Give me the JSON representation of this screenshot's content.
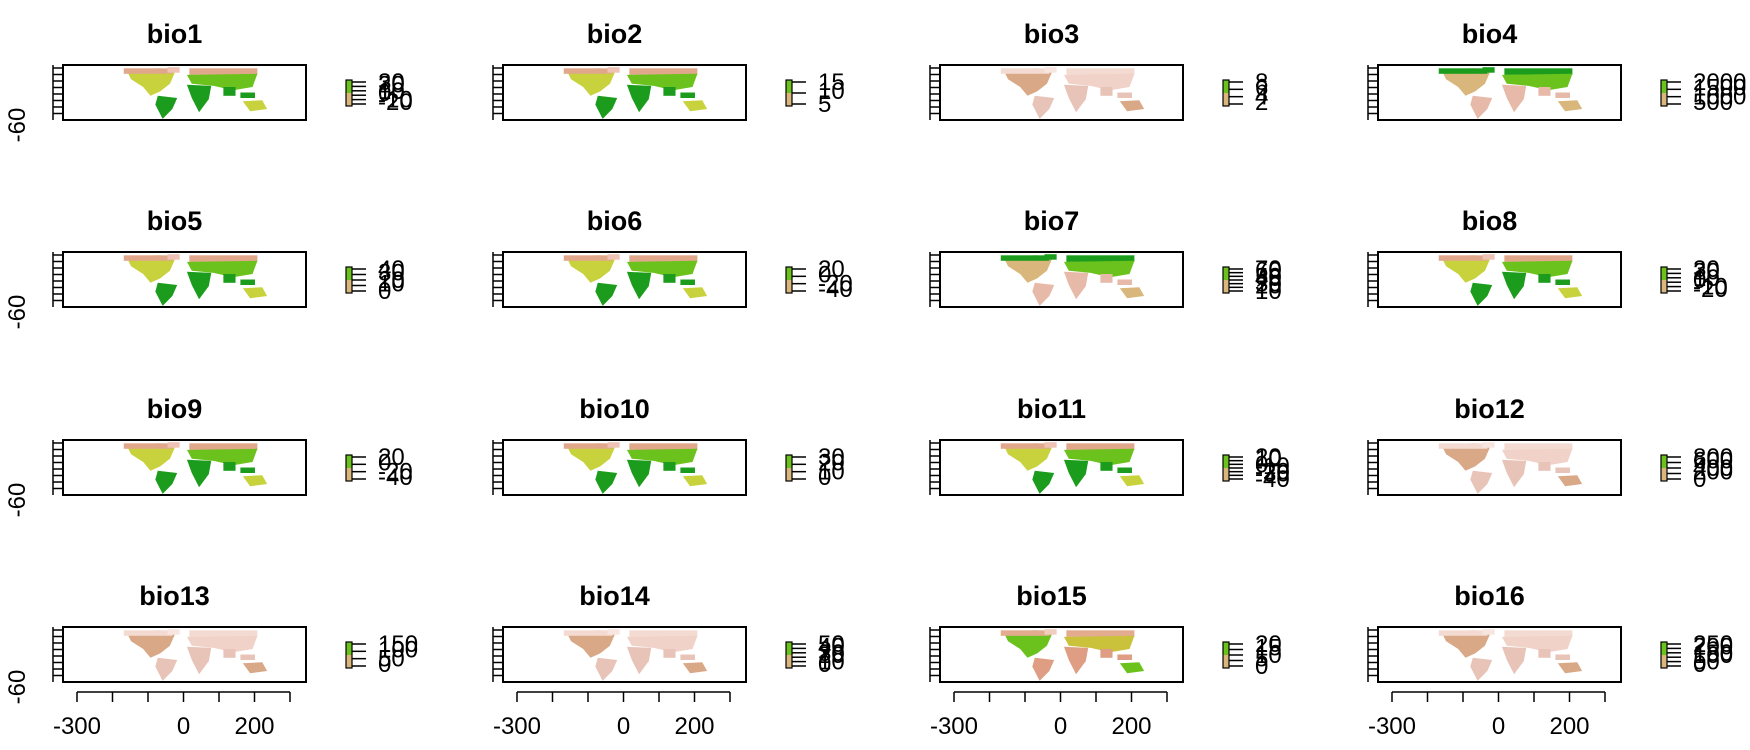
{
  "chart_data": {
    "type": "heatmap",
    "description_kind": "raster-map-grid",
    "x_ticks": [
      -300,
      0,
      200
    ],
    "y_tick": -60,
    "panels": [
      {
        "title": "bio1",
        "legend": [
          "30",
          "20",
          "10",
          "0",
          "-10",
          "-20"
        ],
        "style": "temp"
      },
      {
        "title": "bio2",
        "legend": [
          "15",
          "10",
          "5"
        ],
        "style": "temp"
      },
      {
        "title": "bio3",
        "legend": [
          "8",
          "6",
          "4",
          "2"
        ],
        "style": "pale"
      },
      {
        "title": "bio4",
        "legend": [
          "2000",
          "1500",
          "1000",
          "500"
        ],
        "style": "north"
      },
      {
        "title": "bio5",
        "legend": [
          "40",
          "30",
          "20",
          "10",
          "0"
        ],
        "style": "temp"
      },
      {
        "title": "bio6",
        "legend": [
          "20",
          "0",
          "-20",
          "-40"
        ],
        "style": "temp"
      },
      {
        "title": "bio7",
        "legend": [
          "70",
          "60",
          "50",
          "40",
          "30",
          "20",
          "10"
        ],
        "style": "north"
      },
      {
        "title": "bio8",
        "legend": [
          "30",
          "20",
          "10",
          "0",
          "-10",
          "-20"
        ],
        "style": "temp"
      },
      {
        "title": "bio9",
        "legend": [
          "20",
          "0",
          "-20",
          "-40"
        ],
        "style": "temp"
      },
      {
        "title": "bio10",
        "legend": [
          "30",
          "20",
          "10",
          "0"
        ],
        "style": "temp"
      },
      {
        "title": "bio11",
        "legend": [
          "20",
          "10",
          "0",
          "-10",
          "-20",
          "-30",
          "-40"
        ],
        "style": "temp"
      },
      {
        "title": "bio12",
        "legend": [
          "800",
          "600",
          "400",
          "200",
          "0"
        ],
        "style": "pale"
      },
      {
        "title": "bio13",
        "legend": [
          "150",
          "100",
          "50",
          "0"
        ],
        "style": "pale"
      },
      {
        "title": "bio14",
        "legend": [
          "50",
          "40",
          "30",
          "20",
          "10",
          "0"
        ],
        "style": "pale"
      },
      {
        "title": "bio15",
        "legend": [
          "20",
          "15",
          "10",
          "5",
          "0"
        ],
        "style": "mid"
      },
      {
        "title": "bio16",
        "legend": [
          "250",
          "200",
          "150",
          "100",
          "50",
          "0"
        ],
        "style": "pale"
      }
    ]
  }
}
